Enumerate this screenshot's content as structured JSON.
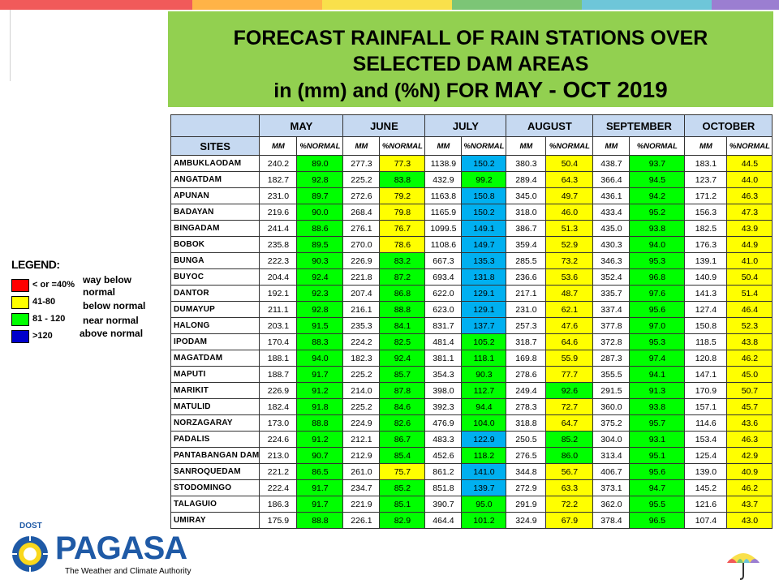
{
  "title": {
    "line1": "FORECAST RAINFALL OF RAIN STATIONS OVER",
    "line2": "SELECTED DAM AREAS",
    "line3_prefix": "in (mm) and (%N) FOR",
    "line3_period": "MAY - OCT 2019"
  },
  "colors": {
    "title_bg": "#92d050",
    "header_bg": "#c6d9f1",
    "way_below": "#ff0000",
    "below": "#ffff00",
    "near": "#00ff00",
    "above": "#00b0f0",
    "topbar": [
      "#f15a5a",
      "#ffb347",
      "#f9e04b",
      "#7cc576",
      "#6ec6d9",
      "#9b7ed1"
    ]
  },
  "table": {
    "sites_header": "SITES",
    "months": [
      "MAY",
      "JUNE",
      "JULY",
      "AUGUST",
      "SEPTEMBER",
      "OCTOBER"
    ],
    "mm_label": "MM",
    "pct_label": "%NORMAL",
    "rows": [
      {
        "site": "AMBUKLAODAM",
        "values": [
          [
            "240.2",
            "89.0"
          ],
          [
            "277.3",
            "77.3"
          ],
          [
            "1138.9",
            "150.2"
          ],
          [
            "380.3",
            "50.4"
          ],
          [
            "438.7",
            "93.7"
          ],
          [
            "183.1",
            "44.5"
          ]
        ]
      },
      {
        "site": "ANGATDAM",
        "values": [
          [
            "182.7",
            "92.8"
          ],
          [
            "225.2",
            "83.8"
          ],
          [
            "432.9",
            "99.2"
          ],
          [
            "289.4",
            "64.3"
          ],
          [
            "366.4",
            "94.5"
          ],
          [
            "123.7",
            "44.0"
          ]
        ]
      },
      {
        "site": "APUNAN",
        "values": [
          [
            "231.0",
            "89.7"
          ],
          [
            "272.6",
            "79.2"
          ],
          [
            "1163.8",
            "150.8"
          ],
          [
            "345.0",
            "49.7"
          ],
          [
            "436.1",
            "94.2"
          ],
          [
            "171.2",
            "46.3"
          ]
        ]
      },
      {
        "site": "BADAYAN",
        "values": [
          [
            "219.6",
            "90.0"
          ],
          [
            "268.4",
            "79.8"
          ],
          [
            "1165.9",
            "150.2"
          ],
          [
            "318.0",
            "46.0"
          ],
          [
            "433.4",
            "95.2"
          ],
          [
            "156.3",
            "47.3"
          ]
        ]
      },
      {
        "site": "BINGADAM",
        "values": [
          [
            "241.4",
            "88.6"
          ],
          [
            "276.1",
            "76.7"
          ],
          [
            "1099.5",
            "149.1"
          ],
          [
            "386.7",
            "51.3"
          ],
          [
            "435.0",
            "93.8"
          ],
          [
            "182.5",
            "43.9"
          ]
        ]
      },
      {
        "site": "BOBOK",
        "values": [
          [
            "235.8",
            "89.5"
          ],
          [
            "270.0",
            "78.6"
          ],
          [
            "1108.6",
            "149.7"
          ],
          [
            "359.4",
            "52.9"
          ],
          [
            "430.3",
            "94.0"
          ],
          [
            "176.3",
            "44.9"
          ]
        ]
      },
      {
        "site": "BUNGA",
        "values": [
          [
            "222.3",
            "90.3"
          ],
          [
            "226.9",
            "83.2"
          ],
          [
            "667.3",
            "135.3"
          ],
          [
            "285.5",
            "73.2"
          ],
          [
            "346.3",
            "95.3"
          ],
          [
            "139.1",
            "41.0"
          ]
        ]
      },
      {
        "site": "BUYOC",
        "values": [
          [
            "204.4",
            "92.4"
          ],
          [
            "221.8",
            "87.2"
          ],
          [
            "693.4",
            "131.8"
          ],
          [
            "236.6",
            "53.6"
          ],
          [
            "352.4",
            "96.8"
          ],
          [
            "140.9",
            "50.4"
          ]
        ]
      },
      {
        "site": "DANTOR",
        "values": [
          [
            "192.1",
            "92.3"
          ],
          [
            "207.4",
            "86.8"
          ],
          [
            "622.0",
            "129.1"
          ],
          [
            "217.1",
            "48.7"
          ],
          [
            "335.7",
            "97.6"
          ],
          [
            "141.3",
            "51.4"
          ]
        ]
      },
      {
        "site": "DUMAYUP",
        "values": [
          [
            "211.1",
            "92.8"
          ],
          [
            "216.1",
            "88.8"
          ],
          [
            "623.0",
            "129.1"
          ],
          [
            "231.0",
            "62.1"
          ],
          [
            "337.4",
            "95.6"
          ],
          [
            "127.4",
            "46.4"
          ]
        ]
      },
      {
        "site": "HALONG",
        "values": [
          [
            "203.1",
            "91.5"
          ],
          [
            "235.3",
            "84.1"
          ],
          [
            "831.7",
            "137.7"
          ],
          [
            "257.3",
            "47.6"
          ],
          [
            "377.8",
            "97.0"
          ],
          [
            "150.8",
            "52.3"
          ]
        ]
      },
      {
        "site": "IPODAM",
        "values": [
          [
            "170.4",
            "88.3"
          ],
          [
            "224.2",
            "82.5"
          ],
          [
            "481.4",
            "105.2"
          ],
          [
            "318.7",
            "64.6"
          ],
          [
            "372.8",
            "95.3"
          ],
          [
            "118.5",
            "43.8"
          ]
        ]
      },
      {
        "site": "MAGATDAM",
        "values": [
          [
            "188.1",
            "94.0"
          ],
          [
            "182.3",
            "92.4"
          ],
          [
            "381.1",
            "118.1"
          ],
          [
            "169.8",
            "55.9"
          ],
          [
            "287.3",
            "97.4"
          ],
          [
            "120.8",
            "46.2"
          ]
        ]
      },
      {
        "site": "MAPUTI",
        "values": [
          [
            "188.7",
            "91.7"
          ],
          [
            "225.2",
            "85.7"
          ],
          [
            "354.3",
            "90.3"
          ],
          [
            "278.6",
            "77.7"
          ],
          [
            "355.5",
            "94.1"
          ],
          [
            "147.1",
            "45.0"
          ]
        ]
      },
      {
        "site": "MARIKIT",
        "values": [
          [
            "226.9",
            "91.2"
          ],
          [
            "214.0",
            "87.8"
          ],
          [
            "398.0",
            "112.7"
          ],
          [
            "249.4",
            "92.6"
          ],
          [
            "291.5",
            "91.3"
          ],
          [
            "170.9",
            "50.7"
          ]
        ]
      },
      {
        "site": "MATULID",
        "values": [
          [
            "182.4",
            "91.8"
          ],
          [
            "225.2",
            "84.6"
          ],
          [
            "392.3",
            "94.4"
          ],
          [
            "278.3",
            "72.7"
          ],
          [
            "360.0",
            "93.8"
          ],
          [
            "157.1",
            "45.7"
          ]
        ]
      },
      {
        "site": "NORZAGARAY",
        "values": [
          [
            "173.0",
            "88.8"
          ],
          [
            "224.9",
            "82.6"
          ],
          [
            "476.9",
            "104.0"
          ],
          [
            "318.8",
            "64.7"
          ],
          [
            "375.2",
            "95.7"
          ],
          [
            "114.6",
            "43.6"
          ]
        ]
      },
      {
        "site": "PADALIS",
        "values": [
          [
            "224.6",
            "91.2"
          ],
          [
            "212.1",
            "86.7"
          ],
          [
            "483.3",
            "122.9"
          ],
          [
            "250.5",
            "85.2"
          ],
          [
            "304.0",
            "93.1"
          ],
          [
            "153.4",
            "46.3"
          ]
        ]
      },
      {
        "site": "PANTABANGAN DAM",
        "values": [
          [
            "213.0",
            "90.7"
          ],
          [
            "212.9",
            "85.4"
          ],
          [
            "452.6",
            "118.2"
          ],
          [
            "276.5",
            "86.0"
          ],
          [
            "313.4",
            "95.1"
          ],
          [
            "125.4",
            "42.9"
          ]
        ]
      },
      {
        "site": "SANROQUEDAM",
        "values": [
          [
            "221.2",
            "86.5"
          ],
          [
            "261.0",
            "75.7"
          ],
          [
            "861.2",
            "141.0"
          ],
          [
            "344.8",
            "56.7"
          ],
          [
            "406.7",
            "95.6"
          ],
          [
            "139.0",
            "40.9"
          ]
        ]
      },
      {
        "site": "STODOMINGO",
        "values": [
          [
            "222.4",
            "91.7"
          ],
          [
            "234.7",
            "85.2"
          ],
          [
            "851.8",
            "139.7"
          ],
          [
            "272.9",
            "63.3"
          ],
          [
            "373.1",
            "94.7"
          ],
          [
            "145.2",
            "46.2"
          ]
        ]
      },
      {
        "site": "TALAGUIO",
        "values": [
          [
            "186.3",
            "91.7"
          ],
          [
            "221.9",
            "85.1"
          ],
          [
            "390.7",
            "95.0"
          ],
          [
            "291.9",
            "72.2"
          ],
          [
            "362.0",
            "95.5"
          ],
          [
            "121.6",
            "43.7"
          ]
        ]
      },
      {
        "site": "UMIRAY",
        "values": [
          [
            "175.9",
            "88.8"
          ],
          [
            "226.1",
            "82.9"
          ],
          [
            "464.4",
            "101.2"
          ],
          [
            "324.9",
            "67.9"
          ],
          [
            "378.4",
            "96.5"
          ],
          [
            "107.4",
            "43.0"
          ]
        ]
      }
    ]
  },
  "legend": {
    "title": "LEGEND:",
    "items": [
      {
        "label": "< or =40%",
        "color": "#ff0000"
      },
      {
        "label": "41-80",
        "color": "#ffff00"
      },
      {
        "label": "81 - 120",
        "color": "#00ff00"
      },
      {
        "label": ">120",
        "color": "#0000cc"
      }
    ],
    "descriptions": [
      "way below normal",
      "below normal",
      "near normal",
      "above normal"
    ]
  },
  "logo": {
    "dost": "DOST",
    "name": "PAGASA",
    "tagline": "The Weather and Climate Authority"
  }
}
